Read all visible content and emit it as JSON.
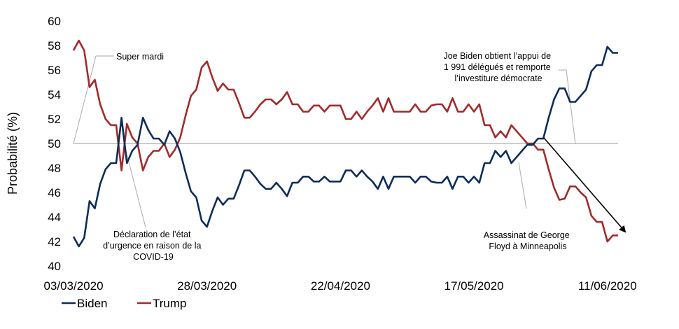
{
  "chart_data": {
    "type": "line",
    "ylabel": "Probabilité (%)",
    "ylim": [
      40,
      60
    ],
    "yticks": [
      40,
      42,
      44,
      46,
      48,
      50,
      52,
      54,
      56,
      58,
      60
    ],
    "x_start": "03/03/2020",
    "x_end": "13/06/2020",
    "xticks": [
      "03/03/2020",
      "28/03/2020",
      "22/04/2020",
      "17/05/2020",
      "11/06/2020"
    ],
    "reference_line": 50,
    "grid": false,
    "legend_position": "bottom-left",
    "series": [
      {
        "name": "Biden",
        "color": "#0d2c5a",
        "x": [
          "03/03/2020",
          "04/03/2020",
          "05/03/2020",
          "06/03/2020",
          "07/03/2020",
          "08/03/2020",
          "09/03/2020",
          "10/03/2020",
          "11/03/2020",
          "12/03/2020",
          "13/03/2020",
          "14/03/2020",
          "15/03/2020",
          "16/03/2020",
          "17/03/2020",
          "18/03/2020",
          "19/03/2020",
          "20/03/2020",
          "21/03/2020",
          "22/03/2020",
          "23/03/2020",
          "24/03/2020",
          "25/03/2020",
          "26/03/2020",
          "27/03/2020",
          "28/03/2020",
          "29/03/2020",
          "30/03/2020",
          "31/03/2020",
          "01/04/2020",
          "02/04/2020",
          "03/04/2020",
          "04/04/2020",
          "05/04/2020",
          "06/04/2020",
          "07/04/2020",
          "08/04/2020",
          "09/04/2020",
          "10/04/2020",
          "11/04/2020",
          "12/04/2020",
          "13/04/2020",
          "14/04/2020",
          "15/04/2020",
          "16/04/2020",
          "17/04/2020",
          "18/04/2020",
          "19/04/2020",
          "20/04/2020",
          "21/04/2020",
          "22/04/2020",
          "23/04/2020",
          "24/04/2020",
          "25/04/2020",
          "26/04/2020",
          "27/04/2020",
          "28/04/2020",
          "29/04/2020",
          "30/04/2020",
          "01/05/2020",
          "02/05/2020",
          "03/05/2020",
          "04/05/2020",
          "05/05/2020",
          "06/05/2020",
          "07/05/2020",
          "08/05/2020",
          "09/05/2020",
          "10/05/2020",
          "11/05/2020",
          "12/05/2020",
          "13/05/2020",
          "14/05/2020",
          "15/05/2020",
          "16/05/2020",
          "17/05/2020",
          "18/05/2020",
          "19/05/2020",
          "20/05/2020",
          "21/05/2020",
          "22/05/2020",
          "23/05/2020",
          "24/05/2020",
          "25/05/2020",
          "26/05/2020",
          "27/05/2020",
          "28/05/2020",
          "29/05/2020",
          "30/05/2020",
          "31/05/2020",
          "01/06/2020",
          "02/06/2020",
          "03/06/2020",
          "04/06/2020",
          "05/06/2020",
          "06/06/2020",
          "07/06/2020",
          "08/06/2020",
          "09/06/2020",
          "10/06/2020",
          "11/06/2020",
          "12/06/2020",
          "13/06/2020"
        ],
        "values": [
          42.4,
          41.6,
          42.3,
          45.3,
          44.7,
          46.7,
          47.9,
          48.4,
          48.4,
          52.1,
          48.4,
          49.4,
          49.9,
          52.1,
          51.1,
          50.4,
          50.4,
          49.9,
          51.0,
          50.4,
          49.3,
          47.6,
          46.1,
          45.6,
          43.7,
          43.2,
          44.5,
          45.6,
          45.0,
          45.5,
          45.5,
          46.6,
          47.8,
          47.8,
          47.3,
          46.7,
          46.3,
          46.3,
          46.8,
          46.3,
          45.7,
          46.8,
          46.8,
          47.3,
          47.3,
          46.9,
          46.9,
          47.3,
          46.9,
          46.9,
          46.9,
          47.8,
          47.8,
          47.3,
          47.8,
          47.3,
          46.9,
          46.3,
          47.3,
          46.3,
          47.3,
          47.3,
          47.3,
          47.3,
          46.8,
          47.3,
          47.3,
          46.9,
          46.8,
          46.8,
          47.3,
          46.3,
          47.3,
          47.3,
          46.8,
          47.3,
          46.8,
          48.4,
          48.4,
          49.4,
          48.9,
          49.4,
          48.4,
          48.9,
          49.4,
          49.9,
          49.9,
          50.4,
          50.4,
          52.1,
          53.6,
          54.5,
          54.5,
          53.4,
          53.4,
          53.9,
          54.4,
          55.9,
          56.4,
          56.4,
          57.9,
          57.4,
          57.4
        ]
      },
      {
        "name": "Trump",
        "color": "#a32a2a",
        "x": [
          "03/03/2020",
          "04/03/2020",
          "05/03/2020",
          "06/03/2020",
          "07/03/2020",
          "08/03/2020",
          "09/03/2020",
          "10/03/2020",
          "11/03/2020",
          "12/03/2020",
          "13/03/2020",
          "14/03/2020",
          "15/03/2020",
          "16/03/2020",
          "17/03/2020",
          "18/03/2020",
          "19/03/2020",
          "20/03/2020",
          "21/03/2020",
          "22/03/2020",
          "23/03/2020",
          "24/03/2020",
          "25/03/2020",
          "26/03/2020",
          "27/03/2020",
          "28/03/2020",
          "29/03/2020",
          "30/03/2020",
          "31/03/2020",
          "01/04/2020",
          "02/04/2020",
          "03/04/2020",
          "04/04/2020",
          "05/04/2020",
          "06/04/2020",
          "07/04/2020",
          "08/04/2020",
          "09/04/2020",
          "10/04/2020",
          "11/04/2020",
          "12/04/2020",
          "13/04/2020",
          "14/04/2020",
          "15/04/2020",
          "16/04/2020",
          "17/04/2020",
          "18/04/2020",
          "19/04/2020",
          "20/04/2020",
          "21/04/2020",
          "22/04/2020",
          "23/04/2020",
          "24/04/2020",
          "25/04/2020",
          "26/04/2020",
          "27/04/2020",
          "28/04/2020",
          "29/04/2020",
          "30/04/2020",
          "01/05/2020",
          "02/05/2020",
          "03/05/2020",
          "04/05/2020",
          "05/05/2020",
          "06/05/2020",
          "07/05/2020",
          "08/05/2020",
          "09/05/2020",
          "10/05/2020",
          "11/05/2020",
          "12/05/2020",
          "13/05/2020",
          "14/05/2020",
          "15/05/2020",
          "16/05/2020",
          "17/05/2020",
          "18/05/2020",
          "19/05/2020",
          "20/05/2020",
          "21/05/2020",
          "22/05/2020",
          "23/05/2020",
          "24/05/2020",
          "25/05/2020",
          "26/05/2020",
          "27/05/2020",
          "28/05/2020",
          "29/05/2020",
          "30/05/2020",
          "31/05/2020",
          "01/06/2020",
          "02/06/2020",
          "03/06/2020",
          "04/06/2020",
          "05/06/2020",
          "06/06/2020",
          "07/06/2020",
          "08/06/2020",
          "09/06/2020",
          "10/06/2020",
          "11/06/2020",
          "12/06/2020",
          "13/06/2020"
        ],
        "values": [
          57.6,
          58.4,
          57.6,
          54.6,
          55.2,
          53.2,
          52.0,
          51.5,
          51.5,
          47.8,
          51.6,
          50.5,
          50.0,
          47.8,
          48.9,
          49.4,
          49.4,
          50.0,
          48.9,
          49.5,
          50.5,
          52.3,
          53.9,
          54.4,
          56.2,
          56.7,
          55.4,
          54.3,
          54.9,
          54.4,
          54.4,
          53.3,
          52.1,
          52.1,
          52.6,
          53.2,
          53.6,
          53.6,
          53.2,
          53.6,
          54.2,
          53.2,
          53.2,
          52.6,
          52.6,
          53.1,
          53.1,
          52.6,
          53.1,
          53.1,
          53.1,
          52.0,
          52.0,
          52.6,
          52.0,
          52.6,
          53.1,
          53.7,
          52.6,
          53.7,
          52.6,
          52.6,
          52.6,
          52.6,
          53.2,
          52.6,
          52.6,
          53.1,
          53.2,
          53.2,
          52.6,
          53.7,
          52.6,
          52.6,
          53.2,
          52.6,
          53.2,
          51.5,
          51.5,
          50.5,
          51.0,
          50.5,
          51.5,
          51.0,
          50.5,
          50.0,
          50.0,
          49.5,
          49.5,
          47.9,
          46.4,
          45.4,
          45.5,
          46.5,
          46.5,
          46.0,
          45.6,
          44.1,
          43.6,
          43.6,
          42.0,
          42.5,
          42.5
        ]
      }
    ],
    "annotations": {
      "super_mardi": [
        "Super mardi"
      ],
      "etat_urgence": [
        "Déclaration de l’état",
        "d’urgence en raison de la",
        "COVID-19"
      ],
      "biden_investiture": [
        "Joe Biden obtient l’appui de",
        "1 991 délégués et remporte",
        "l’investiture démocrate"
      ],
      "george_floyd": [
        "Assassinat de George",
        "Floyd à Minneapolis"
      ]
    }
  }
}
